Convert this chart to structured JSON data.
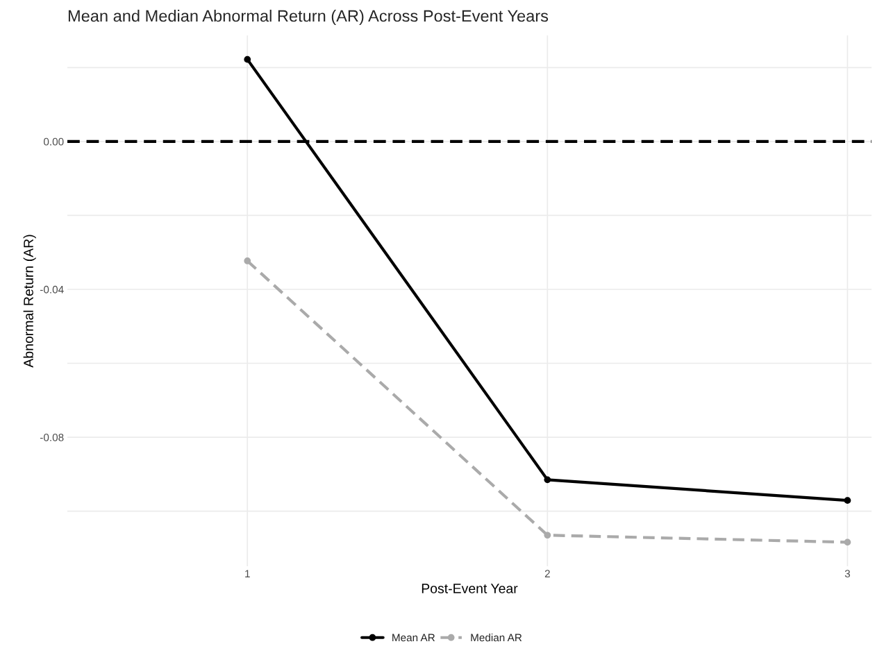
{
  "chart_data": {
    "type": "line",
    "title": "Mean and Median Abnormal Return (AR) Across Post-Event Years",
    "xlabel": "Post-Event Year",
    "ylabel": "Abnormal Return (AR)",
    "x": [
      1,
      2,
      3
    ],
    "series": [
      {
        "name": "Mean AR",
        "color": "#000000",
        "values": [
          0.0222,
          -0.0915,
          -0.0971
        ],
        "line_style": "solid"
      },
      {
        "name": "Median AR",
        "color": "#aaaaaa",
        "values": [
          -0.0323,
          -0.1065,
          -0.1084
        ],
        "line_style": "dashed"
      }
    ],
    "xlim": [
      0.4,
      3.08
    ],
    "xticks": [
      1,
      2,
      3
    ],
    "ylim": [
      -0.1149,
      0.0287
    ],
    "yticks": [
      {
        "value": -0.1,
        "label": null
      },
      -0.08,
      {
        "value": -0.06,
        "label": null
      },
      -0.04,
      {
        "value": -0.02,
        "label": null
      },
      {
        "value": 0,
        "label": "0.00"
      },
      {
        "value": 0.02,
        "label": null
      }
    ],
    "ref_lines": [
      {
        "axis": "y",
        "value": 0,
        "color": "#000000",
        "line_style": "dashed"
      }
    ],
    "grid": true,
    "legend": "bottom",
    "marker": "circle"
  }
}
